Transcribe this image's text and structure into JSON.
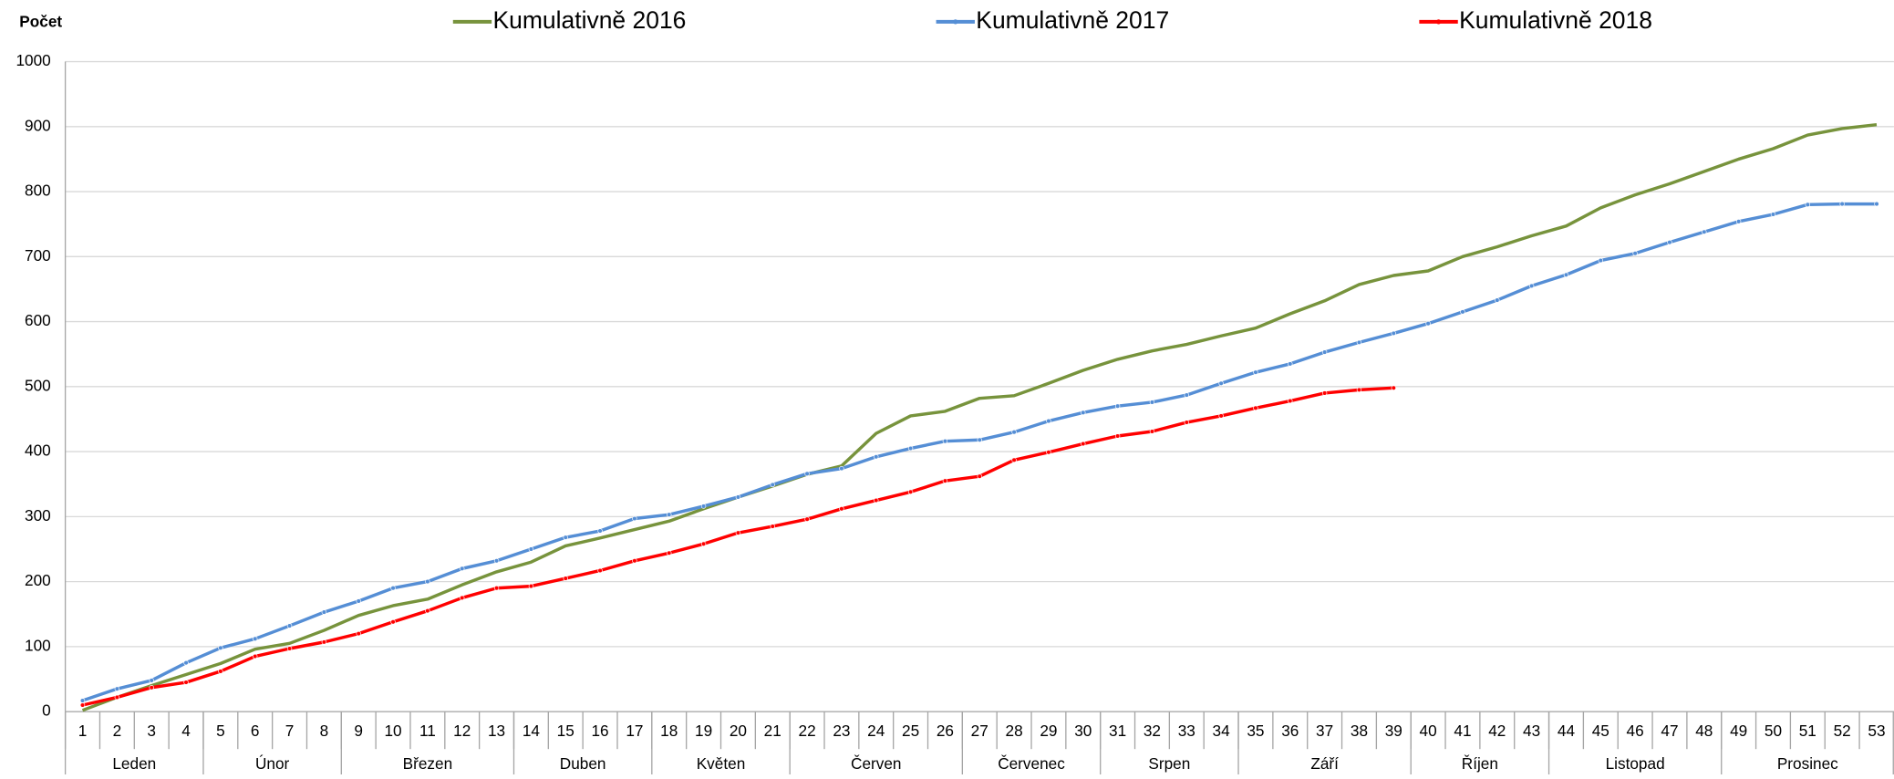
{
  "chart_data": {
    "type": "line",
    "y_label": "Počet",
    "x": [
      1,
      2,
      3,
      4,
      5,
      6,
      7,
      8,
      9,
      10,
      11,
      12,
      13,
      14,
      15,
      16,
      17,
      18,
      19,
      20,
      21,
      22,
      23,
      24,
      25,
      26,
      27,
      28,
      29,
      30,
      31,
      32,
      33,
      34,
      35,
      36,
      37,
      38,
      39,
      40,
      41,
      42,
      43,
      44,
      45,
      46,
      47,
      48,
      49,
      50,
      51,
      52,
      53
    ],
    "months": [
      {
        "label": "Leden",
        "span": 4
      },
      {
        "label": "Únor",
        "span": 4
      },
      {
        "label": "Březen",
        "span": 5
      },
      {
        "label": "Duben",
        "span": 4
      },
      {
        "label": "Květen",
        "span": 4
      },
      {
        "label": "Červen",
        "span": 5
      },
      {
        "label": "Červenec",
        "span": 4
      },
      {
        "label": "Srpen",
        "span": 4
      },
      {
        "label": "Září",
        "span": 5
      },
      {
        "label": "Říjen",
        "span": 4
      },
      {
        "label": "Listopad",
        "span": 5
      },
      {
        "label": "Prosinec",
        "span": 5
      }
    ],
    "series": [
      {
        "name": "Kumulativně 2016",
        "color": "#77933c",
        "markers": false,
        "values": [
          2,
          22,
          40,
          57,
          74,
          96,
          105,
          125,
          148,
          163,
          173,
          195,
          215,
          230,
          255,
          267,
          280,
          293,
          312,
          330,
          347,
          365,
          378,
          428,
          455,
          462,
          482,
          486,
          505,
          525,
          542,
          555,
          565,
          578,
          590,
          612,
          632,
          657,
          671,
          678,
          700,
          715,
          732,
          747,
          775,
          795,
          812,
          831,
          850,
          866,
          887,
          897,
          903
        ]
      },
      {
        "name": "Kumulativně 2017",
        "color": "#558ed5",
        "markers": true,
        "values": [
          17,
          35,
          48,
          75,
          98,
          112,
          132,
          153,
          170,
          190,
          200,
          220,
          232,
          250,
          268,
          278,
          297,
          303,
          316,
          330,
          349,
          366,
          374,
          392,
          405,
          416,
          418,
          430,
          447,
          460,
          470,
          476,
          487,
          505,
          522,
          535,
          553,
          568,
          582,
          597,
          615,
          633,
          655,
          672,
          694,
          705,
          722,
          738,
          754,
          765,
          780,
          781,
          781
        ]
      },
      {
        "name": "Kumulativně 2018",
        "color": "#ff0000",
        "markers": true,
        "values": [
          10,
          22,
          37,
          45,
          62,
          85,
          97,
          107,
          120,
          138,
          155,
          175,
          190,
          193,
          205,
          217,
          232,
          244,
          258,
          275,
          285,
          296,
          312,
          325,
          338,
          355,
          362,
          387,
          399,
          412,
          424,
          431,
          445,
          455,
          467,
          478,
          490,
          495,
          498,
          null,
          null,
          null,
          null,
          null,
          null,
          null,
          null,
          null,
          null,
          null,
          null,
          null,
          null
        ]
      }
    ],
    "ylim": [
      0,
      1000
    ],
    "yticks": [
      0,
      100,
      200,
      300,
      400,
      500,
      600,
      700,
      800,
      900,
      1000
    ],
    "grid": true,
    "legend": "top"
  }
}
